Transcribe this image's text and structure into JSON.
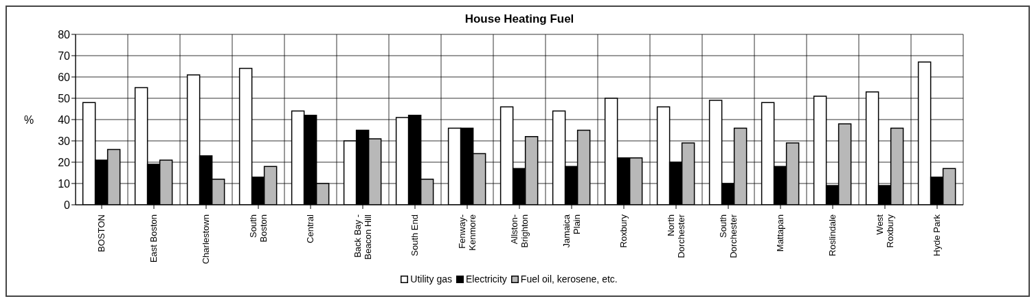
{
  "chart_data": {
    "type": "bar",
    "title": "House Heating Fuel",
    "ylabel": "%",
    "categories": [
      "BOSTON",
      "East Boston",
      "Charlestown",
      "South Boston",
      "Central",
      "Back Bay - Beacon Hill",
      "South End",
      "Fenway-Kenmore",
      "Allston-Brighton",
      "Jamaica Plain",
      "Roxbury",
      "North Dorchester",
      "South Dorchester",
      "Mattapan",
      "Roslindale",
      "West Roxbury",
      "Hyde Park"
    ],
    "series": [
      {
        "name": "Utility gas",
        "color": "#ffffff",
        "values": [
          48,
          55,
          61,
          64,
          44,
          30,
          41,
          36,
          46,
          44,
          50,
          46,
          49,
          48,
          51,
          53,
          67
        ]
      },
      {
        "name": "Electricity",
        "color": "#000000",
        "values": [
          21,
          19,
          23,
          13,
          42,
          35,
          42,
          36,
          17,
          18,
          22,
          20,
          10,
          18,
          9,
          9,
          13
        ]
      },
      {
        "name": "Fuel oil, kerosene, etc.",
        "color": "#b8b8b8",
        "values": [
          26,
          21,
          12,
          18,
          10,
          31,
          12,
          24,
          32,
          35,
          22,
          29,
          36,
          29,
          38,
          36,
          17
        ]
      }
    ],
    "ylim": [
      0,
      80
    ],
    "yticks": [
      0,
      10,
      20,
      30,
      40,
      50,
      60,
      70,
      80
    ],
    "grid": true,
    "legend": "bottom"
  }
}
